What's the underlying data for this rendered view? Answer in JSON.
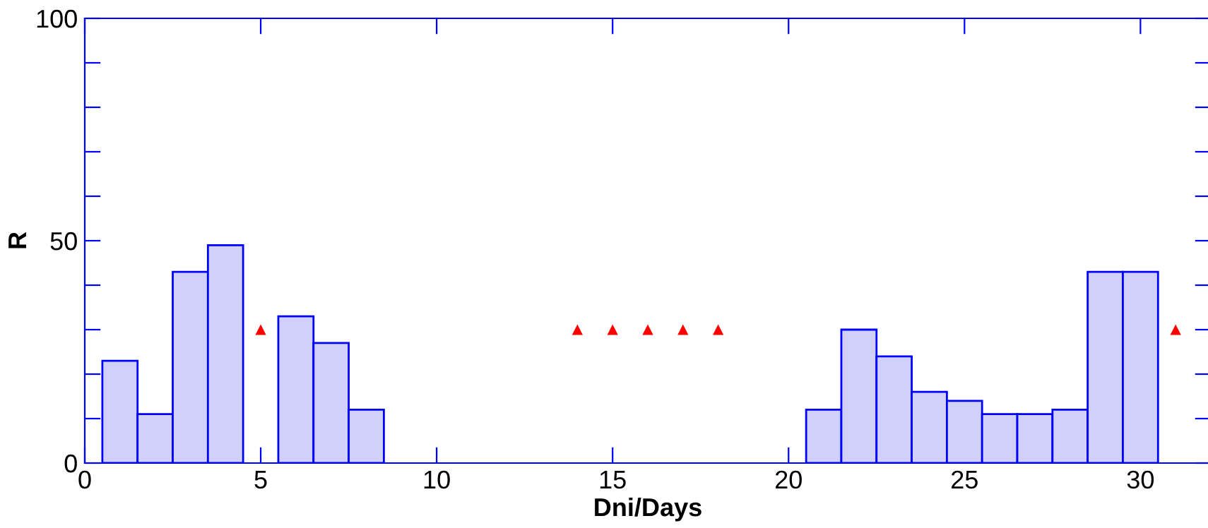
{
  "chart_data": {
    "type": "bar",
    "xlabel": "Dni/Days",
    "ylabel": "R",
    "xlim": [
      0,
      32
    ],
    "ylim": [
      0,
      100
    ],
    "xticks": [
      0,
      5,
      10,
      15,
      20,
      25,
      30
    ],
    "yticks": [
      0,
      {
        "value": 10,
        "label": null
      },
      {
        "value": 20,
        "label": null
      },
      {
        "value": 30,
        "label": null
      },
      {
        "value": 40,
        "label": null
      },
      50,
      {
        "value": 60,
        "label": null
      },
      {
        "value": 70,
        "label": null
      },
      {
        "value": 80,
        "label": null
      },
      {
        "value": 90,
        "label": null
      },
      100
    ],
    "grid": false,
    "legend": false,
    "series": [
      {
        "color": "#d0d0fa",
        "x": [
          1,
          2,
          3,
          4,
          6,
          7,
          8,
          21,
          22,
          23,
          24,
          25,
          26,
          27,
          28,
          29,
          30
        ],
        "values": [
          23,
          11,
          43,
          49,
          33,
          27,
          12,
          12,
          30,
          24,
          16,
          14,
          11,
          11,
          12,
          43,
          43
        ]
      },
      {
        "type": "scatter",
        "color": "#ff0000",
        "marker": "triangle",
        "x": [
          5,
          14,
          15,
          16,
          17,
          18,
          31
        ],
        "values": [
          30,
          30,
          30,
          30,
          30,
          30,
          30
        ]
      }
    ]
  }
}
